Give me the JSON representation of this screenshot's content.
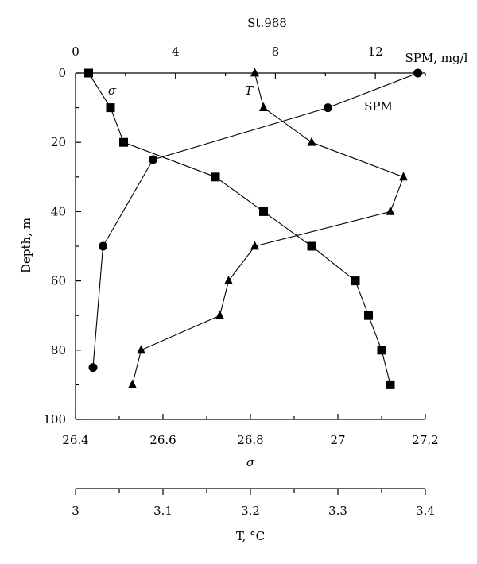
{
  "chart_data": {
    "type": "line",
    "title": "St.988",
    "ylabel": "Depth, m",
    "y_reversed": true,
    "ylim": [
      0,
      100
    ],
    "yticks": [
      0,
      20,
      40,
      60,
      80,
      100
    ],
    "axes": {
      "spm": {
        "label": "SPM, mg/l",
        "range": [
          0,
          14
        ],
        "ticks": [
          0,
          4,
          8,
          12
        ],
        "position": "top"
      },
      "sigma": {
        "label": "σ",
        "range": [
          26.4,
          27.2
        ],
        "ticks": [
          26.4,
          26.6,
          26.8,
          27,
          27.2
        ],
        "tick_labels": [
          "26.4",
          "26.6",
          "26.8",
          "27",
          "27.2"
        ],
        "position": "bottom"
      },
      "temperature": {
        "label": "T, °C",
        "range": [
          3.0,
          3.4
        ],
        "ticks": [
          3.0,
          3.1,
          3.2,
          3.3,
          3.4
        ],
        "tick_labels": [
          "3",
          "3.1",
          "3.2",
          "3.3",
          "3.4"
        ],
        "position": "bottom-secondary"
      }
    },
    "series": [
      {
        "name": "SPM",
        "label": "SPM",
        "axis": "spm",
        "marker": "circle",
        "points": [
          {
            "x": 13.7,
            "y": 0
          },
          {
            "x": 10.1,
            "y": 10
          },
          {
            "x": 3.1,
            "y": 25
          },
          {
            "x": 1.1,
            "y": 50
          },
          {
            "x": 0.7,
            "y": 85
          }
        ]
      },
      {
        "name": "σ",
        "label": "σ",
        "axis": "sigma",
        "marker": "square",
        "points": [
          {
            "x": 26.43,
            "y": 0
          },
          {
            "x": 26.48,
            "y": 10
          },
          {
            "x": 26.51,
            "y": 20
          },
          {
            "x": 26.72,
            "y": 30
          },
          {
            "x": 26.83,
            "y": 40
          },
          {
            "x": 26.94,
            "y": 50
          },
          {
            "x": 27.04,
            "y": 60
          },
          {
            "x": 27.07,
            "y": 70
          },
          {
            "x": 27.1,
            "y": 80
          },
          {
            "x": 27.12,
            "y": 90
          }
        ]
      },
      {
        "name": "T",
        "label": "T",
        "axis": "temperature",
        "marker": "triangle",
        "points": [
          {
            "x": 3.205,
            "y": 0
          },
          {
            "x": 3.215,
            "y": 10
          },
          {
            "x": 3.27,
            "y": 20
          },
          {
            "x": 3.375,
            "y": 30
          },
          {
            "x": 3.36,
            "y": 40
          },
          {
            "x": 3.205,
            "y": 50
          },
          {
            "x": 3.175,
            "y": 60
          },
          {
            "x": 3.165,
            "y": 70
          },
          {
            "x": 3.075,
            "y": 80
          },
          {
            "x": 3.065,
            "y": 90
          }
        ]
      }
    ]
  }
}
